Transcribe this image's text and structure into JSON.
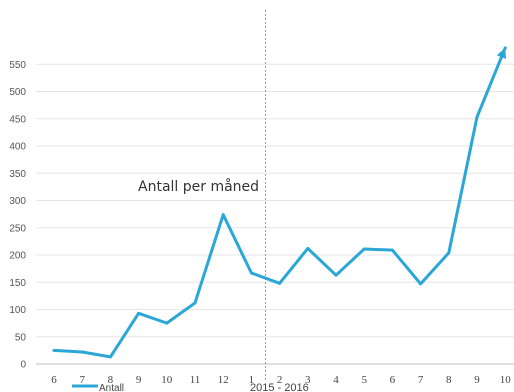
{
  "chart_data": {
    "type": "line",
    "title": "Antall per måned",
    "xlabel": "",
    "ylabel": "",
    "ylim": [
      0,
      580
    ],
    "yticks": [
      0,
      50,
      100,
      150,
      200,
      250,
      300,
      350,
      400,
      450,
      500,
      550
    ],
    "categories": [
      "6",
      "7",
      "8",
      "9",
      "10",
      "11",
      "12",
      "1",
      "2",
      "3",
      "4",
      "5",
      "6",
      "7",
      "8",
      "9",
      "10"
    ],
    "series": [
      {
        "name": "Antall",
        "color": "#2aa7d6",
        "values": [
          25,
          22,
          13,
          93,
          75,
          112,
          274,
          167,
          148,
          212,
          163,
          211,
          209,
          147,
          204,
          453,
          580
        ]
      }
    ],
    "annotation": "2015 - 2016",
    "divider_after_category_index": 7,
    "legend": {
      "label": "Antall",
      "placement": "bottom-left"
    },
    "grid": true
  }
}
